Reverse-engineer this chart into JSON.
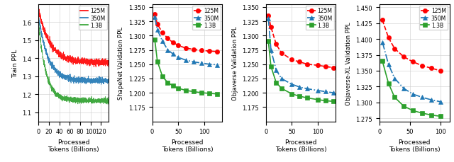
{
  "colors": {
    "125M": "#FF0000",
    "350M": "#1F77B4",
    "1.3B": "#2CA02C"
  },
  "subplot1": {
    "ylabel": "Train PPL",
    "xlabel": "Processed\nTokens (Billions)",
    "ylim": [
      1.05,
      1.7
    ],
    "xlim": [
      0,
      135
    ],
    "yticks": [
      1.1,
      1.2,
      1.3,
      1.4,
      1.5,
      1.6
    ],
    "xticks": [
      0,
      20,
      40,
      60,
      80,
      100,
      120
    ]
  },
  "subplot2": {
    "ylabel": "ShapeNet Validation PPL",
    "xlabel": "Processed\nTokens (Billions)",
    "ylim": [
      1.15,
      1.355
    ],
    "xlim": [
      0,
      135
    ],
    "yticks": [
      1.175,
      1.2,
      1.225,
      1.25,
      1.275,
      1.3,
      1.325,
      1.35
    ],
    "xticks": [
      0,
      50,
      100
    ],
    "data_125M_x": [
      5,
      10,
      20,
      30,
      40,
      50,
      65,
      80,
      95,
      110,
      125
    ],
    "data_125M_y": [
      1.338,
      1.32,
      1.305,
      1.295,
      1.288,
      1.283,
      1.278,
      1.276,
      1.274,
      1.273,
      1.272
    ],
    "data_350M_x": [
      5,
      10,
      20,
      30,
      40,
      50,
      65,
      80,
      95,
      110,
      125
    ],
    "data_350M_y": [
      1.332,
      1.31,
      1.29,
      1.275,
      1.268,
      1.262,
      1.257,
      1.254,
      1.252,
      1.25,
      1.249
    ],
    "data_1_3B_x": [
      5,
      10,
      20,
      30,
      40,
      50,
      65,
      80,
      95,
      110,
      125
    ],
    "data_1_3B_y": [
      1.293,
      1.255,
      1.228,
      1.218,
      1.212,
      1.208,
      1.204,
      1.202,
      1.2,
      1.199,
      1.198
    ]
  },
  "subplot3": {
    "ylabel": "Objaverse Validation PPL",
    "xlabel": "Processed\nTokens (Billions)",
    "ylim": [
      1.15,
      1.355
    ],
    "xlim": [
      0,
      135
    ],
    "yticks": [
      1.175,
      1.2,
      1.225,
      1.25,
      1.275,
      1.3,
      1.325,
      1.35
    ],
    "xticks": [
      0,
      50,
      100
    ],
    "data_125M_x": [
      5,
      10,
      20,
      30,
      50,
      65,
      80,
      100,
      115,
      130
    ],
    "data_125M_y": [
      1.335,
      1.315,
      1.285,
      1.27,
      1.258,
      1.254,
      1.25,
      1.248,
      1.246,
      1.244
    ],
    "data_350M_x": [
      5,
      10,
      20,
      30,
      50,
      65,
      80,
      100,
      115,
      130
    ],
    "data_350M_y": [
      1.33,
      1.275,
      1.24,
      1.225,
      1.215,
      1.21,
      1.207,
      1.204,
      1.202,
      1.2
    ],
    "data_1_3B_x": [
      5,
      10,
      20,
      30,
      50,
      65,
      80,
      100,
      115,
      130
    ],
    "data_1_3B_y": [
      1.29,
      1.246,
      1.218,
      1.208,
      1.198,
      1.194,
      1.191,
      1.188,
      1.186,
      1.185
    ]
  },
  "subplot4": {
    "ylabel": "Objaverse-XL Validation PPL",
    "xlabel": "Processed\nTokens (Billions)",
    "ylim": [
      1.27,
      1.455
    ],
    "xlim": [
      0,
      115
    ],
    "yticks": [
      1.275,
      1.3,
      1.325,
      1.35,
      1.375,
      1.4,
      1.425,
      1.45
    ],
    "xticks": [
      0,
      50,
      100
    ],
    "data_125M_x": [
      5,
      15,
      25,
      40,
      55,
      70,
      85,
      100
    ],
    "data_125M_y": [
      1.43,
      1.402,
      1.385,
      1.372,
      1.364,
      1.358,
      1.354,
      1.35
    ],
    "data_350M_x": [
      5,
      15,
      25,
      40,
      55,
      70,
      85,
      100
    ],
    "data_350M_y": [
      1.395,
      1.36,
      1.338,
      1.322,
      1.313,
      1.308,
      1.304,
      1.301
    ],
    "data_1_3B_x": [
      5,
      15,
      25,
      40,
      55,
      70,
      85,
      100
    ],
    "data_1_3B_y": [
      1.365,
      1.33,
      1.308,
      1.294,
      1.287,
      1.283,
      1.28,
      1.278
    ]
  }
}
